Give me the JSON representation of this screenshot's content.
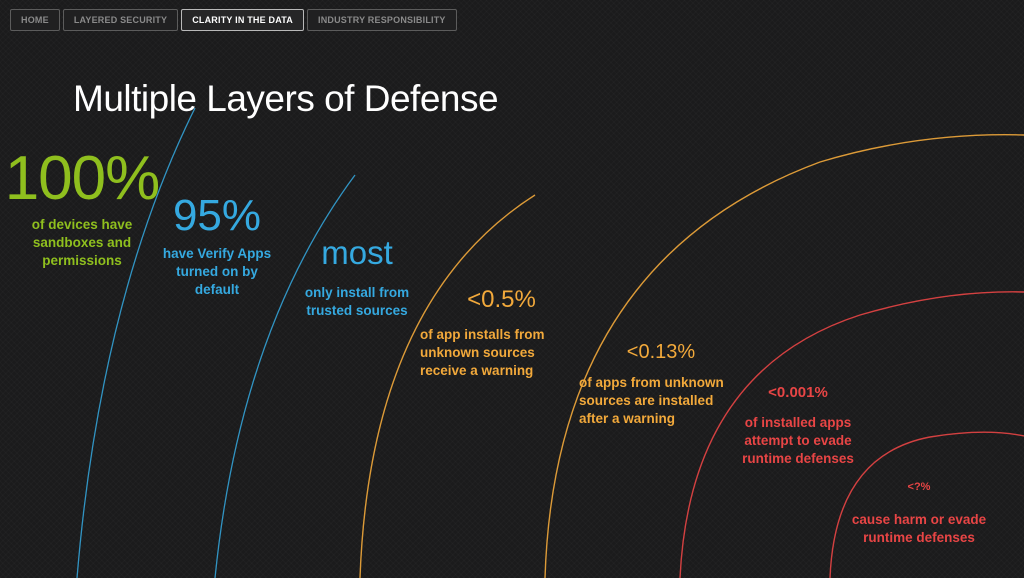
{
  "nav": {
    "tabs": [
      {
        "label": "HOME",
        "active": false
      },
      {
        "label": "LAYERED SECURITY",
        "active": false
      },
      {
        "label": "CLARITY IN THE DATA",
        "active": true
      },
      {
        "label": "INDUSTRY RESPONSIBILITY",
        "active": false
      }
    ]
  },
  "title": "Multiple Layers of Defense",
  "colors": {
    "background": "#1b1b1c",
    "green": "#8fbf1e",
    "blue": "#35a9e0",
    "orange": "#f2a93b",
    "red": "#e84545",
    "title": "#ffffff"
  },
  "layers": [
    {
      "value": "100%",
      "lines": [
        "of devices have",
        "sandboxes and",
        "permissions"
      ]
    },
    {
      "value": "95%",
      "lines": [
        "have Verify Apps",
        "turned on by",
        "default"
      ]
    },
    {
      "value": "most",
      "lines": [
        "only install from",
        "trusted sources"
      ]
    },
    {
      "value": "<0.5%",
      "lines": [
        "of app installs from",
        "unknown sources",
        "receive a warning"
      ]
    },
    {
      "value": "<0.13%",
      "lines": [
        "of apps from unknown",
        "sources are installed",
        "after a warning"
      ]
    },
    {
      "value": "<0.001%",
      "lines": [
        "of installed apps",
        "attempt to evade",
        "runtime defenses"
      ]
    },
    {
      "value": "<?%",
      "lines": [
        "cause harm or evade",
        "runtime defenses"
      ]
    }
  ]
}
